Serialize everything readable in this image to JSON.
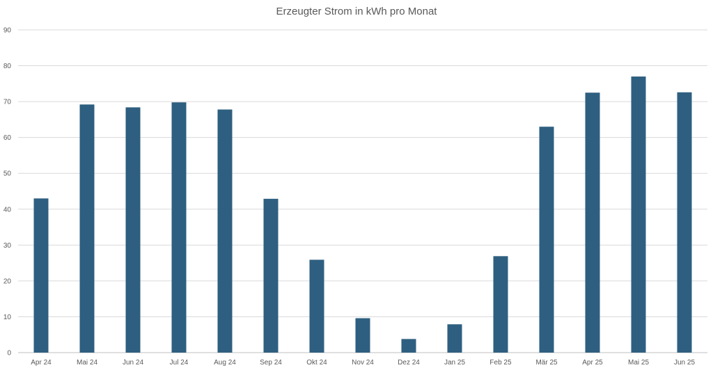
{
  "chart_data": {
    "type": "bar",
    "title": "Erzeugter Strom in kWh pro Monat",
    "xlabel": "",
    "ylabel": "",
    "categories": [
      "Apr 24",
      "Mai 24",
      "Jun 24",
      "Jul 24",
      "Aug 24",
      "Sep 24",
      "Okt 24",
      "Nov 24",
      "Dez 24",
      "Jan 25",
      "Feb 25",
      "Mär 25",
      "Apr 25",
      "Mai 25",
      "Jun 25"
    ],
    "values": [
      43,
      69.2,
      68.4,
      69.8,
      67.8,
      42.9,
      25.9,
      9.6,
      3.8,
      7.9,
      26.9,
      63,
      72.5,
      77,
      72.6
    ],
    "ylim": [
      0,
      90
    ],
    "yticks": [
      0,
      10,
      20,
      30,
      40,
      50,
      60,
      70,
      80,
      90
    ],
    "grid": true,
    "legend": "none",
    "colors": {
      "bar": "#2e5f80",
      "grid": "#d9d9d9",
      "text": "#595959"
    }
  }
}
